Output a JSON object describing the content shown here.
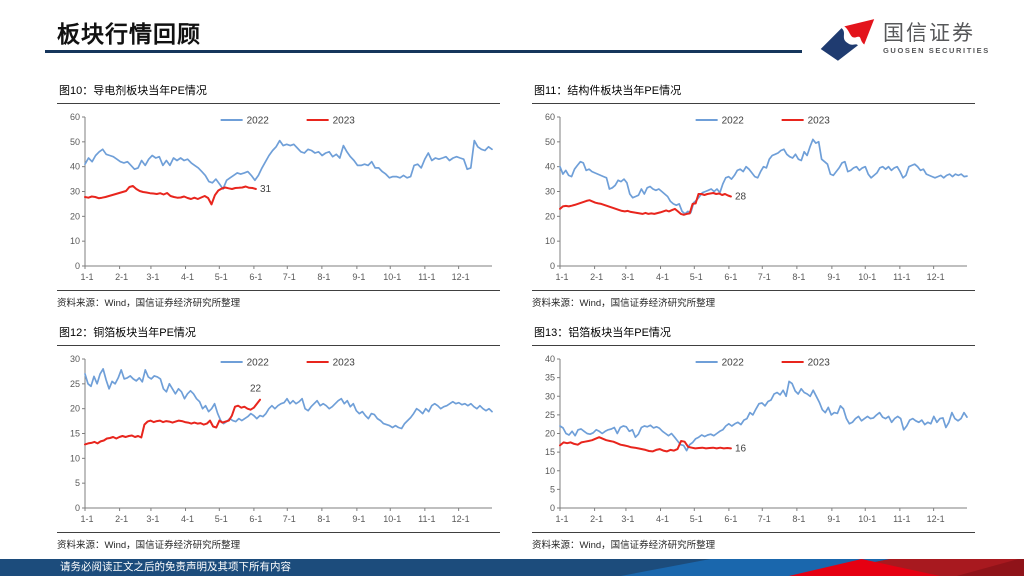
{
  "header": {
    "title": "板块行情回顾",
    "logo": {
      "name": "国信证券",
      "subtitle": "GUOSEN SECURITIES"
    }
  },
  "footer": {
    "disclaimer": "请务必阅读正文之后的免责声明及其项下所有内容"
  },
  "colors": {
    "accent_navy": "#16365c",
    "line_2022": "#6f9fd8",
    "line_2023": "#e8251d",
    "axis": "#7f7f7f",
    "tick_label": "#595959",
    "legend_label": "#404040",
    "data_label": "#404040",
    "footer_navy": "#1c4c7c",
    "logo_red": "#e3141c",
    "logo_navy": "#1f3b70"
  },
  "chart_data": [
    {
      "type": "line",
      "title": "图10：导电剂板块当年PE情况",
      "source": "资料来源：Wind，国信证券经济研究所整理",
      "xlabel": "",
      "ylabel": "",
      "ylim": [
        0,
        60
      ],
      "ytick_step": 10,
      "grid": false,
      "legend_position": "top-center",
      "xticks": [
        "1-1",
        "2-1",
        "3-1",
        "4-1",
        "5-1",
        "6-1",
        "7-1",
        "8-1",
        "9-1",
        "10-1",
        "11-1",
        "12-1"
      ],
      "series": [
        {
          "name": "2022",
          "color_key": "line_2022",
          "x_start": 0,
          "x_end": 1,
          "values": [
            41,
            43.5,
            42,
            44.5,
            46,
            47,
            45,
            44.5,
            44,
            43,
            42,
            41.5,
            42,
            40.5,
            39,
            39.5,
            42.5,
            40.5,
            43,
            44.5,
            43.5,
            44,
            40.5,
            42.5,
            40.5,
            43.5,
            42.5,
            43.5,
            42.5,
            43,
            41.5,
            40.5,
            39.5,
            38,
            36.5,
            34,
            33.5,
            35,
            33,
            31,
            34.5,
            35.5,
            36.5,
            37.5,
            37,
            37.5,
            38,
            36.5,
            34.5,
            36.5,
            39.5,
            42,
            44.5,
            46.5,
            48,
            50.5,
            48.5,
            49,
            48.5,
            49,
            47.5,
            46,
            45.5,
            47,
            46.5,
            45.5,
            46,
            44.5,
            45.5,
            46,
            44,
            45,
            43.5,
            48.5,
            46,
            44,
            42.5,
            40.5,
            40.5,
            41,
            40.5,
            42,
            39.5,
            39.5,
            38,
            37,
            35.5,
            36,
            36,
            35.5,
            36.5,
            35.5,
            36,
            40.5,
            41,
            39.5,
            43,
            45.5,
            42.5,
            43.5,
            43,
            43.5,
            44,
            42.5,
            43.5,
            44,
            43.5,
            43,
            39,
            39.5,
            50.5,
            48,
            47,
            46.5,
            48,
            47
          ]
        },
        {
          "name": "2023",
          "color_key": "line_2023",
          "x_start": 0,
          "x_end": 0.42,
          "end_label": "31",
          "end_label_pos": "right",
          "values": [
            27.8,
            27.5,
            28,
            27.8,
            27.3,
            27.5,
            27.8,
            28.2,
            28.6,
            29,
            29.4,
            29.8,
            30.2,
            31.8,
            32.2,
            31,
            30.2,
            29.8,
            29.6,
            29.3,
            29.2,
            29,
            29.3,
            28.8,
            29.4,
            28.2,
            27.8,
            27.5,
            27.6,
            28,
            27.4,
            27,
            27.5,
            27,
            27.6,
            28.2,
            27.4,
            24.8,
            28.5,
            30.4,
            31.2,
            31.6,
            31.3,
            31,
            31.4,
            31.5,
            31.6,
            32,
            31.5,
            31.4,
            31
          ]
        }
      ]
    },
    {
      "type": "line",
      "title": "图11：结构件板块当年PE情况",
      "source": "资料来源：Wind，国信证券经济研究所整理",
      "xlabel": "",
      "ylabel": "",
      "ylim": [
        0,
        60
      ],
      "ytick_step": 10,
      "grid": false,
      "legend_position": "top-center",
      "xticks": [
        "1-1",
        "2-1",
        "3-1",
        "4-1",
        "5-1",
        "6-1",
        "7-1",
        "8-1",
        "9-1",
        "10-1",
        "11-1",
        "12-1"
      ],
      "series": [
        {
          "name": "2022",
          "color_key": "line_2022",
          "x_start": 0,
          "x_end": 1,
          "values": [
            40,
            37,
            38.5,
            36.5,
            36,
            39,
            40.5,
            42,
            41.5,
            38.5,
            39,
            38,
            37.5,
            37,
            36.5,
            36,
            35.5,
            31,
            31.5,
            32.5,
            34.5,
            34,
            35,
            33.5,
            29,
            27.5,
            28,
            28.5,
            31,
            29,
            31.5,
            32,
            31,
            30.5,
            31,
            30,
            29,
            28,
            26,
            25,
            24.5,
            25,
            22,
            21,
            22,
            21.5,
            25.5,
            26.5,
            28,
            29.5,
            30,
            30.5,
            31,
            30,
            31,
            29.5,
            33,
            35.5,
            36,
            35,
            36.5,
            38.5,
            39,
            38,
            40,
            39,
            37.5,
            36,
            35.5,
            38,
            40,
            39.5,
            43,
            44.5,
            45,
            45.5,
            46.5,
            47,
            45,
            44,
            43.5,
            45,
            43,
            42.5,
            46,
            44.5,
            48,
            51,
            49.5,
            50,
            43,
            42,
            41,
            37,
            36.5,
            38,
            39.5,
            41.5,
            42,
            38,
            38.5,
            39.5,
            40,
            38.5,
            39.5,
            40,
            37,
            35.5,
            36.5,
            37.5,
            39.5,
            40,
            39,
            40,
            38.5,
            39.5,
            40,
            38,
            35.5,
            36.5,
            40,
            40.5,
            41,
            40,
            38.5,
            39,
            37,
            36.5,
            36,
            35.5,
            36,
            36.5,
            35.5,
            36.5,
            37,
            36,
            37,
            36.5,
            37,
            36,
            36.2
          ]
        },
        {
          "name": "2023",
          "color_key": "line_2023",
          "x_start": 0,
          "x_end": 0.42,
          "end_label": "28",
          "end_label_pos": "right",
          "values": [
            23,
            24,
            24.2,
            24,
            24.3,
            24.6,
            25,
            25.4,
            25.8,
            26.2,
            26.5,
            26,
            25.5,
            25.2,
            25,
            24.6,
            24.2,
            23.8,
            23.4,
            23,
            22.6,
            22.2,
            22,
            22.2,
            21.8,
            21.6,
            21.4,
            21.2,
            21,
            21.4,
            21,
            21.2,
            21,
            21.3,
            21.6,
            22,
            22.4,
            22,
            22.5,
            23,
            22,
            21,
            20.6,
            21,
            21.2,
            25,
            25.2,
            29,
            29,
            28.6,
            29,
            29.2,
            29.4,
            29,
            29.2,
            28.6,
            29,
            28.4,
            28
          ]
        }
      ]
    },
    {
      "type": "line",
      "title": "图12：铜箔板块当年PE情况",
      "source": "资料来源：Wind，国信证券经济研究所整理",
      "xlabel": "",
      "ylabel": "",
      "ylim": [
        0,
        30
      ],
      "ytick_step": 5,
      "grid": false,
      "legend_position": "top-center",
      "xticks": [
        "1-1",
        "2-1",
        "3-1",
        "4-1",
        "5-1",
        "6-1",
        "7-1",
        "8-1",
        "9-1",
        "10-1",
        "11-1",
        "12-1"
      ],
      "series": [
        {
          "name": "2022",
          "color_key": "line_2022",
          "x_start": 0,
          "x_end": 1,
          "values": [
            27,
            25,
            24.5,
            26.5,
            25,
            27,
            28,
            25.8,
            24,
            25.5,
            25,
            26.2,
            27.8,
            26,
            26.2,
            26.6,
            26,
            25.6,
            26.2,
            25.4,
            27.8,
            26.4,
            26,
            26.6,
            26.4,
            26,
            24,
            23.4,
            25,
            24,
            23,
            24,
            23.4,
            22,
            23,
            23.6,
            23,
            22,
            21.4,
            20,
            20.6,
            19.4,
            20,
            21,
            19,
            17.6,
            17,
            17.4,
            18,
            17.6,
            17.4,
            18,
            17.6,
            18,
            18.4,
            19,
            18.6,
            18,
            18.6,
            18.4,
            19,
            20,
            20.6,
            20,
            20.6,
            21,
            21.2,
            22,
            21,
            21.6,
            21,
            21.4,
            22,
            20,
            19.6,
            20.4,
            21,
            21.6,
            20.6,
            21,
            20.6,
            20,
            20.4,
            21,
            21.6,
            22,
            21,
            21.6,
            20.4,
            21,
            19.6,
            19,
            19.4,
            18.6,
            18,
            19,
            18.8,
            18,
            17.6,
            17,
            16.8,
            16.6,
            16.2,
            16.6,
            16.2,
            16,
            17,
            17.6,
            18.2,
            19,
            20,
            19.6,
            19,
            20,
            19.4,
            20.6,
            21,
            20.6,
            20,
            20.4,
            20.6,
            21,
            21.4,
            21,
            21.2,
            20.8,
            21,
            20.6,
            21,
            20.4,
            20,
            20.6,
            20,
            19.6,
            20,
            19.4
          ]
        },
        {
          "name": "2023",
          "color_key": "line_2023",
          "x_start": 0,
          "x_end": 0.43,
          "end_label": "22",
          "end_label_pos": "above",
          "values": [
            12.8,
            13,
            13.1,
            13.3,
            13,
            13.4,
            13.6,
            14,
            14.1,
            14.3,
            14,
            14.3,
            14.5,
            14.3,
            14.5,
            14.6,
            14.3,
            14.5,
            14.2,
            16.8,
            17.4,
            17.6,
            17.3,
            17.5,
            17.6,
            17.3,
            17.5,
            17.4,
            17.2,
            17.4,
            17.6,
            17.5,
            17.3,
            17.2,
            17,
            17.2,
            17,
            17.1,
            16.8,
            17,
            17.6,
            16.4,
            16.2,
            17.6,
            17.2,
            17.4,
            17.6,
            18.6,
            20.4,
            20.6,
            20.2,
            20.4,
            20,
            19.8,
            20.2,
            21,
            21.8
          ]
        }
      ]
    },
    {
      "type": "line",
      "title": "图13：铝箔板块当年PE情况",
      "source": "资料来源：Wind，国信证券经济研究所整理",
      "xlabel": "",
      "ylabel": "",
      "ylim": [
        0,
        40
      ],
      "ytick_step": 5,
      "grid": false,
      "legend_position": "top-center",
      "xticks": [
        "1-1",
        "2-1",
        "3-1",
        "4-1",
        "5-1",
        "6-1",
        "7-1",
        "8-1",
        "9-1",
        "10-1",
        "11-1",
        "12-1"
      ],
      "series": [
        {
          "name": "2022",
          "color_key": "line_2022",
          "x_start": 0,
          "x_end": 1,
          "values": [
            22,
            21.5,
            20,
            19.6,
            20.6,
            19.4,
            21,
            21.2,
            20.6,
            20,
            19.8,
            20.2,
            21,
            20.6,
            20,
            20.6,
            21,
            21.2,
            21.6,
            20,
            21.6,
            22,
            21.8,
            20.6,
            21,
            19,
            19.8,
            21.6,
            22,
            21.8,
            22.2,
            21.5,
            21.8,
            21.4,
            20.6,
            20,
            19.4,
            20,
            19,
            18,
            17,
            16.8,
            15.4,
            17,
            17.6,
            18.6,
            19,
            19.6,
            19.2,
            19.6,
            19.8,
            19.4,
            20,
            20.6,
            21,
            22,
            22.6,
            22,
            22.6,
            23,
            22.4,
            23.6,
            24,
            25.6,
            25,
            26.6,
            28,
            28.2,
            27.4,
            28.6,
            29,
            30.6,
            31,
            30.4,
            31.6,
            30,
            34,
            33.4,
            31.4,
            30.6,
            32,
            31,
            30.6,
            30,
            31.6,
            30,
            28.4,
            26.4,
            25.6,
            27,
            25,
            25.6,
            25.4,
            27.4,
            26.6,
            24,
            22.6,
            23,
            24,
            24.6,
            23.4,
            24,
            24.6,
            24,
            24.2,
            25,
            25.6,
            24.4,
            24,
            24.6,
            23,
            24,
            24.6,
            24,
            21,
            22,
            23.6,
            24,
            23.4,
            23,
            23.6,
            22.4,
            23,
            22.6,
            24.6,
            23,
            24,
            24.2,
            21.6,
            23,
            25.6,
            24,
            23.4,
            24,
            25.6,
            24.4
          ]
        },
        {
          "name": "2023",
          "color_key": "line_2023",
          "x_start": 0,
          "x_end": 0.42,
          "end_label": "16",
          "end_label_pos": "right",
          "values": [
            16.8,
            17.6,
            17.4,
            17.6,
            17.2,
            17,
            17.6,
            17.8,
            18,
            18.2,
            18.6,
            19,
            18.6,
            18.2,
            18,
            17.8,
            17.4,
            17,
            16.8,
            16.6,
            16.3,
            16.2,
            16,
            15.8,
            15.6,
            15.3,
            15.2,
            15.6,
            15.8,
            15.4,
            15.2,
            15.6,
            15.4,
            15.8,
            18,
            17.8,
            16.4,
            16.2,
            16,
            16.1,
            16.2,
            16,
            16.1,
            16.2,
            16,
            16.2,
            16,
            16.1,
            16
          ]
        }
      ]
    }
  ]
}
